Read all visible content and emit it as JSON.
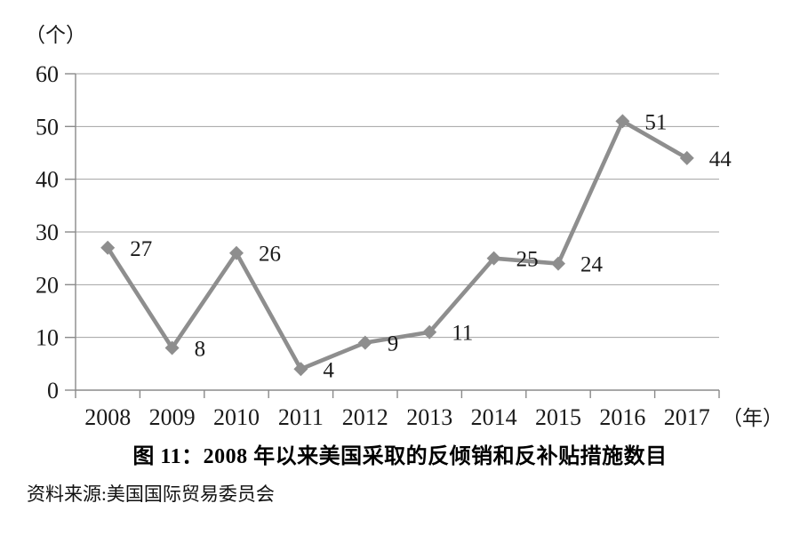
{
  "chart_data": {
    "type": "line",
    "title": "图 11：2008 年以来美国采取的反倾销和反补贴措施数目",
    "y_axis_unit": "（个）",
    "x_axis_unit": "（年）",
    "categories": [
      "2008",
      "2009",
      "2010",
      "2011",
      "2012",
      "2013",
      "2014",
      "2015",
      "2016",
      "2017"
    ],
    "values": [
      27,
      8,
      26,
      4,
      9,
      11,
      25,
      24,
      51,
      44
    ],
    "data_labels": [
      "27",
      "8",
      "26",
      "4",
      "9",
      "11",
      "25",
      "24",
      "51",
      "44"
    ],
    "ylim": [
      0,
      60
    ],
    "yticks": [
      0,
      10,
      20,
      30,
      40,
      50,
      60
    ],
    "grid": true,
    "legend": "none",
    "marker": "diamond",
    "colors": {
      "series": "#8e8e8e",
      "gridline": "#a3a3a3",
      "axis": "#8a8a8a",
      "label_text": "#1a1a1a"
    }
  },
  "caption": "图 11：2008 年以来美国采取的反倾销和反补贴措施数目",
  "source": "资料来源:美国国际贸易委员会"
}
